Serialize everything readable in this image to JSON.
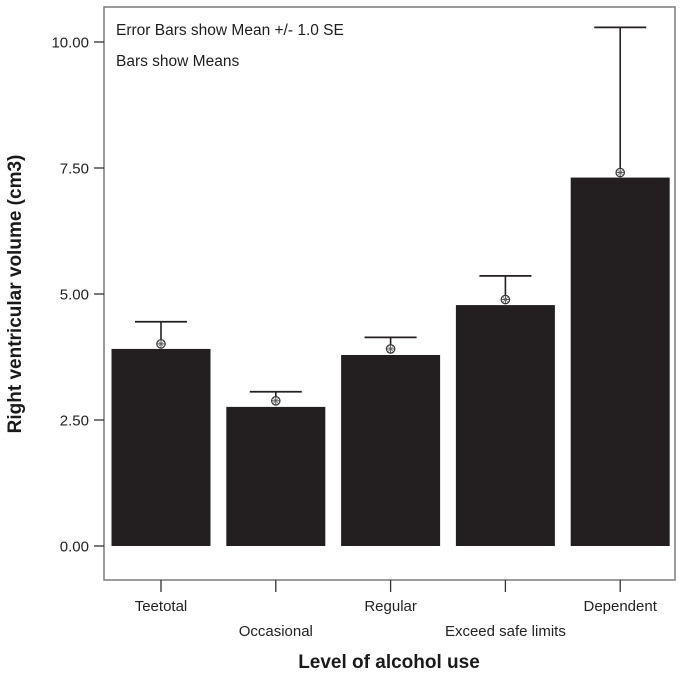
{
  "chart_data": {
    "type": "bar",
    "title": "",
    "xlabel": "Level of alcohol use",
    "ylabel": "Right ventricular volume (cm3)",
    "categories": [
      "Teetotal",
      "Occasional",
      "Regular",
      "Exceed safe limits",
      "Dependent"
    ],
    "series": [
      {
        "name": "Mean",
        "values": [
          3.91,
          2.76,
          3.79,
          4.78,
          7.31
        ]
      }
    ],
    "mean_markers": [
      4.01,
      2.88,
      3.91,
      4.89,
      7.41
    ],
    "error_bar_upper": [
      4.45,
      3.06,
      4.14,
      5.36,
      10.29
    ],
    "ylim": [
      -0.65,
      10.55
    ],
    "yticks": [
      0,
      2.5,
      5,
      7.5,
      10
    ],
    "ytick_labels": [
      "0.00",
      "2.50",
      "5.00",
      "7.50",
      "10.00"
    ],
    "grid": false,
    "legend": "none",
    "annotations": [
      "Error Bars show Mean +/- 1.0 SE",
      "Bars show Means"
    ],
    "colors": {
      "bar": "#231f20",
      "frame": "#7a7a7a",
      "error_bar": "#231f20"
    }
  }
}
